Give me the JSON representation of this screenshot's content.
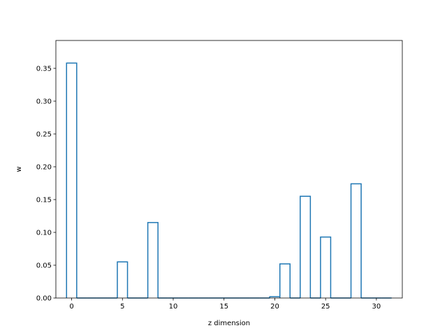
{
  "chart_data": {
    "type": "bar",
    "style": "step-outline",
    "title": "",
    "xlabel": "z dimension",
    "ylabel": "w",
    "xlim": [
      -1.55,
      32.55
    ],
    "ylim": [
      0,
      0.3925
    ],
    "xticks": [
      0,
      5,
      10,
      15,
      20,
      25,
      30
    ],
    "yticks": [
      0.0,
      0.05,
      0.1,
      0.15,
      0.2,
      0.25,
      0.3,
      0.35
    ],
    "ytick_labels": [
      "0.00",
      "0.05",
      "0.10",
      "0.15",
      "0.20",
      "0.25",
      "0.30",
      "0.35"
    ],
    "grid": false,
    "line_color": "#1f77b4",
    "x": [
      0,
      1,
      2,
      3,
      4,
      5,
      6,
      7,
      8,
      9,
      10,
      11,
      12,
      13,
      14,
      15,
      16,
      17,
      18,
      19,
      20,
      21,
      22,
      23,
      24,
      25,
      26,
      27,
      28,
      29,
      30,
      31
    ],
    "values": [
      0.358,
      0,
      0,
      0,
      0,
      0.055,
      0,
      0,
      0.115,
      0,
      0,
      0,
      0,
      0,
      0,
      0,
      0,
      0,
      0,
      0,
      0.002,
      0.052,
      0,
      0.155,
      0,
      0.093,
      0,
      0,
      0.174,
      0,
      0,
      0
    ]
  }
}
